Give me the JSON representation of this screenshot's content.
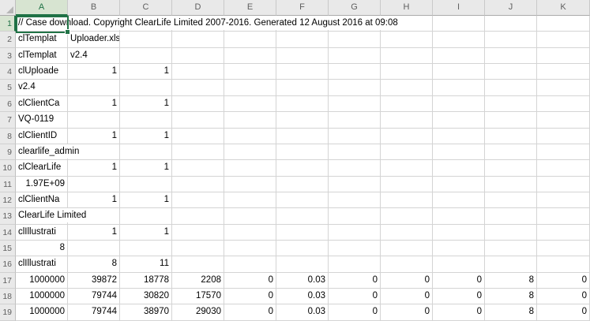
{
  "colors": {
    "selection_green": "#217346",
    "selected_header_bg": "#d7e4d1",
    "selected_header_text": "#1e7145",
    "header_bg": "#e9e9e9",
    "gridline": "#d4d4d4"
  },
  "sheet": {
    "column_headers": [
      "A",
      "B",
      "C",
      "D",
      "E",
      "F",
      "G",
      "H",
      "I",
      "J",
      "K"
    ],
    "selected_cell": {
      "column": "A",
      "row": 1
    },
    "rows": [
      {
        "n": 1,
        "cells": [
          {
            "col": "A",
            "text": "// Case download. Copyright ClearLife Limited 2007-2016. Generated 12 August 2016 at 09:08",
            "align": "left",
            "overflow": true
          }
        ]
      },
      {
        "n": 2,
        "cells": [
          {
            "col": "A",
            "text": "clTemplat",
            "align": "left"
          },
          {
            "col": "B",
            "text": "Uploader.xls",
            "align": "left"
          }
        ]
      },
      {
        "n": 3,
        "cells": [
          {
            "col": "A",
            "text": "clTemplat",
            "align": "left"
          },
          {
            "col": "B",
            "text": "v2.4",
            "align": "left"
          }
        ]
      },
      {
        "n": 4,
        "cells": [
          {
            "col": "A",
            "text": "clUploade",
            "align": "left"
          },
          {
            "col": "B",
            "text": "1",
            "align": "right"
          },
          {
            "col": "C",
            "text": "1",
            "align": "right"
          }
        ]
      },
      {
        "n": 5,
        "cells": [
          {
            "col": "A",
            "text": "v2.4",
            "align": "left"
          }
        ]
      },
      {
        "n": 6,
        "cells": [
          {
            "col": "A",
            "text": "clClientCa",
            "align": "left"
          },
          {
            "col": "B",
            "text": "1",
            "align": "right"
          },
          {
            "col": "C",
            "text": "1",
            "align": "right"
          }
        ]
      },
      {
        "n": 7,
        "cells": [
          {
            "col": "A",
            "text": "VQ-0119",
            "align": "left"
          }
        ]
      },
      {
        "n": 8,
        "cells": [
          {
            "col": "A",
            "text": "clClientID",
            "align": "left"
          },
          {
            "col": "B",
            "text": "1",
            "align": "right"
          },
          {
            "col": "C",
            "text": "1",
            "align": "right"
          }
        ]
      },
      {
        "n": 9,
        "cells": [
          {
            "col": "A",
            "text": "clearlife_admin",
            "align": "left",
            "overflow": true
          }
        ]
      },
      {
        "n": 10,
        "cells": [
          {
            "col": "A",
            "text": "clClearLife",
            "align": "left"
          },
          {
            "col": "B",
            "text": "1",
            "align": "right"
          },
          {
            "col": "C",
            "text": "1",
            "align": "right"
          }
        ]
      },
      {
        "n": 11,
        "cells": [
          {
            "col": "A",
            "text": "1.97E+09",
            "align": "right"
          }
        ]
      },
      {
        "n": 12,
        "cells": [
          {
            "col": "A",
            "text": "clClientNa",
            "align": "left"
          },
          {
            "col": "B",
            "text": "1",
            "align": "right"
          },
          {
            "col": "C",
            "text": "1",
            "align": "right"
          }
        ]
      },
      {
        "n": 13,
        "cells": [
          {
            "col": "A",
            "text": "ClearLife Limited",
            "align": "left",
            "overflow": true
          }
        ]
      },
      {
        "n": 14,
        "cells": [
          {
            "col": "A",
            "text": "clIllustrati",
            "align": "left"
          },
          {
            "col": "B",
            "text": "1",
            "align": "right"
          },
          {
            "col": "C",
            "text": "1",
            "align": "right"
          }
        ]
      },
      {
        "n": 15,
        "cells": [
          {
            "col": "A",
            "text": "8",
            "align": "right"
          }
        ]
      },
      {
        "n": 16,
        "cells": [
          {
            "col": "A",
            "text": "clIllustrati",
            "align": "left"
          },
          {
            "col": "B",
            "text": "8",
            "align": "right"
          },
          {
            "col": "C",
            "text": "11",
            "align": "right"
          }
        ]
      },
      {
        "n": 17,
        "cells": [
          {
            "col": "A",
            "text": "1000000",
            "align": "right"
          },
          {
            "col": "B",
            "text": "39872",
            "align": "right"
          },
          {
            "col": "C",
            "text": "18778",
            "align": "right"
          },
          {
            "col": "D",
            "text": "2208",
            "align": "right"
          },
          {
            "col": "E",
            "text": "0",
            "align": "right"
          },
          {
            "col": "F",
            "text": "0.03",
            "align": "right"
          },
          {
            "col": "G",
            "text": "0",
            "align": "right"
          },
          {
            "col": "H",
            "text": "0",
            "align": "right"
          },
          {
            "col": "I",
            "text": "0",
            "align": "right"
          },
          {
            "col": "J",
            "text": "8",
            "align": "right"
          },
          {
            "col": "K",
            "text": "0",
            "align": "right"
          }
        ]
      },
      {
        "n": 18,
        "cells": [
          {
            "col": "A",
            "text": "1000000",
            "align": "right"
          },
          {
            "col": "B",
            "text": "79744",
            "align": "right"
          },
          {
            "col": "C",
            "text": "30820",
            "align": "right"
          },
          {
            "col": "D",
            "text": "17570",
            "align": "right"
          },
          {
            "col": "E",
            "text": "0",
            "align": "right"
          },
          {
            "col": "F",
            "text": "0.03",
            "align": "right"
          },
          {
            "col": "G",
            "text": "0",
            "align": "right"
          },
          {
            "col": "H",
            "text": "0",
            "align": "right"
          },
          {
            "col": "I",
            "text": "0",
            "align": "right"
          },
          {
            "col": "J",
            "text": "8",
            "align": "right"
          },
          {
            "col": "K",
            "text": "0",
            "align": "right"
          }
        ]
      },
      {
        "n": 19,
        "cells": [
          {
            "col": "A",
            "text": "1000000",
            "align": "right"
          },
          {
            "col": "B",
            "text": "79744",
            "align": "right"
          },
          {
            "col": "C",
            "text": "38970",
            "align": "right"
          },
          {
            "col": "D",
            "text": "29030",
            "align": "right"
          },
          {
            "col": "E",
            "text": "0",
            "align": "right"
          },
          {
            "col": "F",
            "text": "0.03",
            "align": "right"
          },
          {
            "col": "G",
            "text": "0",
            "align": "right"
          },
          {
            "col": "H",
            "text": "0",
            "align": "right"
          },
          {
            "col": "I",
            "text": "0",
            "align": "right"
          },
          {
            "col": "J",
            "text": "8",
            "align": "right"
          },
          {
            "col": "K",
            "text": "0",
            "align": "right"
          }
        ]
      }
    ]
  }
}
